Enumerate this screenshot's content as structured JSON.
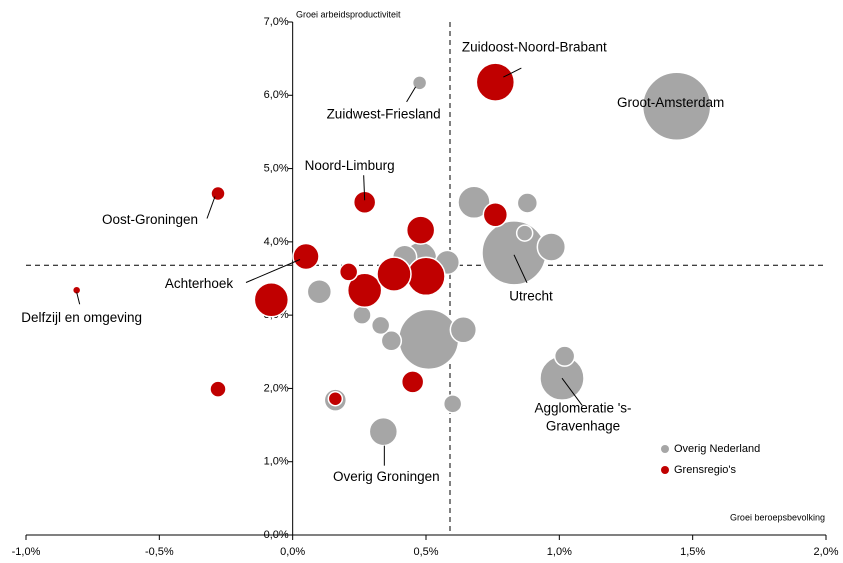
{
  "chart_data": {
    "type": "bubble",
    "x_axis_label": "Groei beroepsbevolking",
    "y_axis_label": "Groei arbeidsproductiviteit",
    "xlim": [
      -1,
      2
    ],
    "ylim": [
      0,
      7
    ],
    "xticks": [
      {
        "value": -1,
        "label": "-1,0%"
      },
      {
        "value": -0.5,
        "label": "-0,5%"
      },
      {
        "value": 0,
        "label": "0,0%"
      },
      {
        "value": 0.5,
        "label": "0,5%"
      },
      {
        "value": 1,
        "label": "1,0%"
      },
      {
        "value": 1.5,
        "label": "1,5%"
      },
      {
        "value": 2,
        "label": "2,0%"
      }
    ],
    "yticks": [
      {
        "value": 0,
        "label": "0,0%"
      },
      {
        "value": 1,
        "label": "1,0%"
      },
      {
        "value": 2,
        "label": "2,0%"
      },
      {
        "value": 3,
        "label": "3,0%"
      },
      {
        "value": 4,
        "label": "4,0%"
      },
      {
        "value": 5,
        "label": "5,0%"
      },
      {
        "value": 6,
        "label": "6,0%"
      },
      {
        "value": 7,
        "label": "7,0%"
      }
    ],
    "reference_lines": {
      "x": 0.59,
      "y": 3.68
    },
    "legend": "lower right",
    "series": [
      {
        "name": "Overig Nederland",
        "color": "#a6a6a6",
        "x": [
          0.476,
          1.44,
          0.68,
          0.88,
          0.87,
          0.97,
          0.83,
          0.42,
          0.48,
          0.58,
          0.1,
          0.26,
          0.33,
          0.37,
          0.51,
          0.64,
          1.02,
          1.01,
          0.16,
          0.6,
          0.34
        ],
        "values": [
          6.17,
          5.85,
          4.54,
          4.53,
          4.12,
          3.93,
          3.85,
          3.79,
          3.78,
          3.72,
          3.32,
          3.0,
          2.86,
          2.65,
          2.67,
          2.8,
          2.44,
          2.14,
          1.84,
          1.79,
          1.41
        ],
        "sizes": [
          49,
          1156,
          256,
          100,
          64,
          196,
          1024,
          144,
          256,
          144,
          144,
          81,
          81,
          100,
          900,
          169,
          100,
          484,
          121,
          81,
          196
        ],
        "point_labels": [
          "Zuidwest-Friesland",
          "Groot-Amsterdam",
          null,
          null,
          null,
          null,
          "Utrecht",
          null,
          null,
          null,
          null,
          null,
          null,
          null,
          null,
          null,
          null,
          [
            "Agglomeratie 's-",
            "Gravenhage"
          ],
          null,
          null,
          "Overig Groningen"
        ]
      },
      {
        "name": "Grensregio's",
        "color": "#c00000",
        "x": [
          0.76,
          -0.28,
          0.27,
          0.48,
          0.76,
          0.05,
          0.21,
          0.27,
          0.38,
          0.5,
          -0.81,
          -0.08,
          -0.28,
          0.16,
          0.45
        ],
        "values": [
          6.18,
          4.66,
          4.54,
          4.16,
          4.37,
          3.8,
          3.59,
          3.34,
          3.56,
          3.53,
          3.34,
          3.21,
          1.99,
          1.86,
          2.09
        ],
        "sizes": [
          361,
          49,
          121,
          196,
          144,
          169,
          81,
          289,
          289,
          361,
          16,
          289,
          64,
          49,
          121
        ],
        "point_labels": [
          "Zuidoost-Noord-Brabant",
          "Oost-Groningen",
          "Noord-Limburg",
          null,
          null,
          "Achterhoek",
          null,
          null,
          null,
          null,
          "Delfzijl en omgeving",
          null,
          null,
          null,
          null
        ]
      }
    ]
  }
}
